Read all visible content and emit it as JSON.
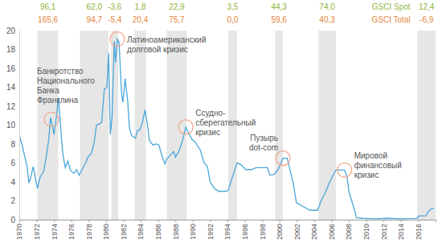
{
  "chart_data": {
    "type": "line",
    "color": "#4aa6d9",
    "x": [
      1970.0,
      1970.1,
      1970.3,
      1970.6,
      1970.9,
      1971.1,
      1971.3,
      1971.6,
      1971.9,
      1972.1,
      1972.4,
      1972.8,
      1973.1,
      1973.4,
      1973.6,
      1973.8,
      1974.0,
      1974.3,
      1974.5,
      1974.8,
      1975.0,
      1975.3,
      1975.6,
      1975.9,
      1976.3,
      1976.6,
      1976.9,
      1977.3,
      1977.7,
      1977.9,
      1978.3,
      1978.6,
      1978.9,
      1979.2,
      1979.5,
      1979.8,
      1980.1,
      1980.3,
      1980.5,
      1980.7,
      1980.95,
      1981.1,
      1981.3,
      1981.5,
      1981.8,
      1981.95,
      1982.2,
      1982.5,
      1982.7,
      1982.95,
      1983.4,
      1983.6,
      1983.9,
      1984.2,
      1984.5,
      1984.8,
      1985.0,
      1985.4,
      1985.8,
      1986.1,
      1986.5,
      1986.8,
      1987.0,
      1987.4,
      1987.8,
      1988.0,
      1988.4,
      1988.8,
      1989.2,
      1989.5,
      1989.9,
      1990.3,
      1990.9,
      1991.3,
      1991.7,
      1992.0,
      1992.5,
      1993.0,
      1993.8,
      1994.1,
      1994.5,
      1994.9,
      1995.1,
      1995.6,
      1996.1,
      1996.8,
      1997.3,
      1997.9,
      1998.6,
      1998.9,
      1999.4,
      1999.9,
      2000.4,
      2000.9,
      2001.2,
      2001.6,
      2001.95,
      2002.9,
      2003.5,
      2004.4,
      2004.8,
      2005.3,
      2005.8,
      2006.5,
      2007.5,
      2007.8,
      2008.0,
      2008.3,
      2008.9,
      2009.5,
      2011.0,
      2012.5,
      2014.0,
      2015.9,
      2016.0,
      2016.9,
      2017.2,
      2017.5,
      2017.8
    ],
    "values": [
      9.0,
      8.6,
      8.0,
      6.8,
      5.6,
      3.9,
      4.4,
      5.6,
      4.2,
      3.3,
      4.5,
      5.1,
      6.6,
      8.5,
      10.8,
      10.0,
      9.0,
      11.0,
      12.9,
      9.4,
      7.1,
      5.5,
      6.2,
      5.2,
      4.9,
      5.3,
      4.7,
      5.4,
      6.1,
      6.6,
      7.0,
      8.0,
      10.0,
      10.1,
      10.3,
      13.8,
      14.0,
      17.6,
      9.0,
      10.9,
      18.9,
      16.6,
      19.1,
      18.8,
      13.3,
      12.4,
      14.9,
      12.6,
      9.7,
      8.9,
      8.6,
      9.4,
      9.5,
      10.3,
      11.6,
      9.9,
      8.4,
      7.9,
      8.0,
      7.9,
      6.6,
      5.9,
      6.4,
      6.8,
      7.2,
      6.6,
      7.2,
      8.3,
      9.8,
      9.2,
      8.5,
      8.2,
      7.3,
      6.0,
      5.6,
      4.0,
      3.3,
      3.0,
      3.0,
      3.1,
      4.3,
      5.4,
      6.0,
      5.8,
      5.3,
      5.3,
      5.5,
      5.5,
      5.5,
      4.7,
      4.8,
      5.4,
      6.5,
      6.5,
      5.3,
      3.8,
      1.8,
      1.3,
      1.0,
      1.0,
      2.0,
      2.9,
      4.0,
      5.25,
      5.25,
      4.5,
      3.0,
      2.1,
      0.2,
      0.15,
      0.1,
      0.15,
      0.1,
      0.13,
      0.37,
      0.41,
      0.9,
      1.15,
      1.2
    ],
    "xlim": [
      1970,
      2018
    ],
    "xticks": [
      1970,
      1972,
      1974,
      1976,
      1978,
      1980,
      1982,
      1984,
      1986,
      1988,
      1990,
      1992,
      1994,
      1996,
      1998,
      2000,
      2002,
      2004,
      2006,
      2008,
      2010,
      2012,
      2014,
      2016
    ],
    "ylim": [
      0,
      20
    ],
    "yticks": [
      0,
      2,
      4,
      6,
      8,
      10,
      12,
      14,
      16,
      18,
      20
    ],
    "grid": false,
    "shaded_periods": [
      {
        "start": 1972.1,
        "end": 1974.5
      },
      {
        "start": 1977.0,
        "end": 1980.3
      },
      {
        "start": 1980.6,
        "end": 1981.4
      },
      {
        "start": 1983.3,
        "end": 1984.6
      },
      {
        "start": 1987.0,
        "end": 1989.3
      },
      {
        "start": 1994.1,
        "end": 1995.1
      },
      {
        "start": 1999.5,
        "end": 2000.4
      },
      {
        "start": 2004.5,
        "end": 2006.5
      },
      {
        "start": 2015.9,
        "end": 2018
      }
    ],
    "period_values": [
      {
        "name": "GSCI Spot",
        "color": "#8db63c",
        "values": [
          96.1,
          62.0,
          -3.6,
          1.8,
          22.9,
          3.5,
          44.3,
          74.0,
          12.4
        ],
        "value_labels": [
          "96,1",
          "62,0",
          "-3,6",
          "1,8",
          "22,9",
          "3,5",
          "44,3",
          "74,0",
          "12,4"
        ]
      },
      {
        "name": "GSCI Total",
        "color": "#e2843a",
        "values": [
          165.6,
          94.7,
          -5.4,
          20.4,
          75.7,
          0.0,
          59.6,
          40.3,
          -6.9
        ],
        "value_labels": [
          "165,6",
          "94,7",
          "-5,4",
          "20,4",
          "75,7",
          "0,0",
          "59,6",
          "40,3",
          "-6,9"
        ]
      }
    ],
    "annotations": [
      {
        "lines": [
          "Банкротство",
          "Национального",
          "Банка",
          "Франклина"
        ],
        "x": 1973.7,
        "y": 10.6
      },
      {
        "lines": [
          "Латиноамериканский",
          "долговой кризис"
        ],
        "x": 1981.3,
        "y": 19.1
      },
      {
        "lines": [
          "Ссудно-",
          "сберегательный",
          "кризис"
        ],
        "x": 1989.2,
        "y": 9.8
      },
      {
        "lines": [
          "Пузырь",
          "dot-com"
        ],
        "x": 2000.4,
        "y": 6.5
      },
      {
        "lines": [
          "Мировой",
          "финансовый",
          "кризис"
        ],
        "x": 2007.5,
        "y": 5.25
      }
    ]
  }
}
